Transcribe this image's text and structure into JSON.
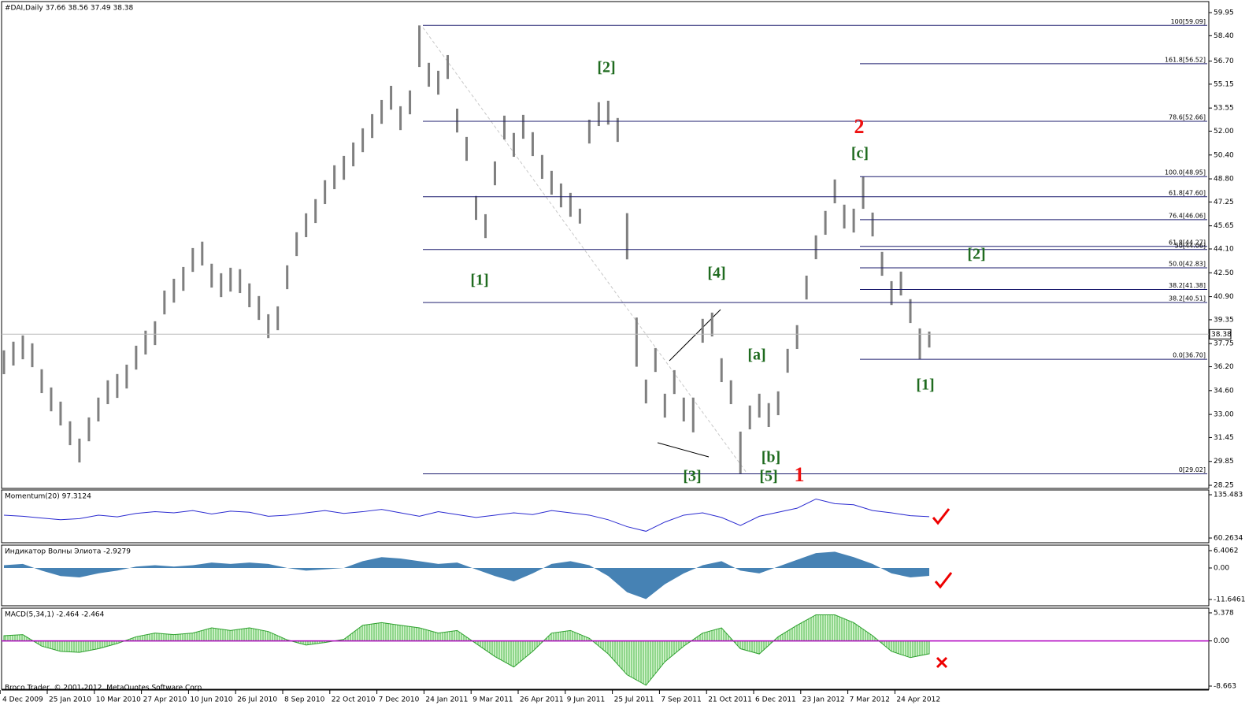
{
  "chart_data": [
    {
      "type": "hlbar",
      "title": "#DAI,Daily  37.66 38.56 37.49 38.38",
      "color": "#7f7f7f",
      "high": [
        37.3,
        37.88,
        38.3,
        37.77,
        36.03,
        34.81,
        33.86,
        32.54,
        31.38,
        32.8,
        34.13,
        35.29,
        35.71,
        36.34,
        37.61,
        38.62,
        39.25,
        41.31,
        42.1,
        42.89,
        44.16,
        44.59,
        43.11,
        42.47,
        42.84,
        42.74,
        41.79,
        40.94,
        39.72,
        40.25,
        43.0,
        45.22,
        46.49,
        47.44,
        48.71,
        49.71,
        50.34,
        51.24,
        52.19,
        53.14,
        54.09,
        55.04,
        53.67,
        54.73,
        59.09,
        56.58,
        56.05,
        57.1,
        53.51,
        51.61,
        47.65,
        46.43,
        49.97,
        53.04,
        51.88,
        53.09,
        51.93,
        50.4,
        49.34,
        48.49,
        47.86,
        46.8,
        52.77,
        53.94,
        54.04,
        52.88,
        46.5,
        39.5,
        35.34,
        37.45,
        34.39,
        35.97,
        34.13,
        34.13,
        39.41,
        39.83,
        36.77,
        35.29,
        31.85,
        33.6,
        34.39,
        33.76,
        34.55,
        37.4,
        38.99,
        42.31,
        45.01,
        46.65,
        48.76,
        47.07,
        46.8,
        48.95,
        46.54,
        43.9,
        41.94,
        42.58,
        40.73,
        38.77,
        38.56
      ],
      "low": [
        35.7,
        36.28,
        36.7,
        36.17,
        34.43,
        33.21,
        32.26,
        30.94,
        29.78,
        31.2,
        32.53,
        33.69,
        34.11,
        34.74,
        36.01,
        37.02,
        37.65,
        39.71,
        40.5,
        41.29,
        42.56,
        42.99,
        41.51,
        40.87,
        41.24,
        41.14,
        40.19,
        39.34,
        38.12,
        38.65,
        41.4,
        43.62,
        44.89,
        45.84,
        47.11,
        48.11,
        48.74,
        49.64,
        50.59,
        51.54,
        52.49,
        53.44,
        52.07,
        53.13,
        56.3,
        54.98,
        54.45,
        55.5,
        51.91,
        50.01,
        46.05,
        44.83,
        48.37,
        51.44,
        50.28,
        51.49,
        50.33,
        48.8,
        47.74,
        46.89,
        46.26,
        45.8,
        51.17,
        52.34,
        52.44,
        51.28,
        43.4,
        36.2,
        33.74,
        35.85,
        32.79,
        34.37,
        32.53,
        31.8,
        37.81,
        38.23,
        35.17,
        33.69,
        29.02,
        32.0,
        32.79,
        32.16,
        32.95,
        35.8,
        37.39,
        40.71,
        43.41,
        45.05,
        47.16,
        45.47,
        45.2,
        46.79,
        44.94,
        42.3,
        40.34,
        40.98,
        39.13,
        36.7,
        37.49
      ],
      "ylim": [
        28.04,
        60.69
      ],
      "yticks": [
        59.95,
        {
          "value": 58.4,
          "label": "58.40"
        },
        {
          "value": 56.7,
          "label": "56.70"
        },
        55.15,
        53.55,
        {
          "value": 52,
          "label": "52.00"
        },
        {
          "value": 50.4,
          "label": "50.40"
        },
        {
          "value": 48.8,
          "label": "48.80"
        },
        47.25,
        45.65,
        {
          "value": 44.1,
          "label": "44.10"
        },
        {
          "value": 42.5,
          "label": "42.50"
        },
        {
          "value": 40.9,
          "label": "40.90"
        },
        39.35,
        37.75,
        {
          "value": 36.2,
          "label": "36.20"
        },
        {
          "value": 34.6,
          "label": "34.60"
        },
        {
          "value": 33,
          "label": "33.00"
        },
        31.45,
        29.85,
        28.25
      ],
      "last_price": 38.38,
      "fib_color": "#1c1c6e",
      "fib_levels": [
        {
          "value": 59.09,
          "label": "100[59.09]"
        },
        {
          "value": 56.52,
          "label": "161.8[56.52]"
        },
        {
          "value": 52.66,
          "label": "78.6[52.66]"
        },
        {
          "value": 48.95,
          "label": "100.0[48.95]"
        },
        {
          "value": 47.6,
          "label": "61.8[47.60]"
        },
        {
          "value": 46.06,
          "label": "76.4[46.06]"
        },
        {
          "value": 44.27,
          "label": "61.8[44.27]"
        },
        {
          "value": 44.06,
          "label": "50[44.06]"
        },
        {
          "value": 42.83,
          "label": "50.0[42.83]"
        },
        {
          "value": 41.38,
          "label": "38.2[41.38]"
        },
        {
          "value": 40.51,
          "label": "38.2[40.51]"
        },
        {
          "value": 36.7,
          "label": "0.0[36.70]"
        },
        {
          "value": 29.02,
          "label": "0[29.02]"
        }
      ],
      "wave_labels": [
        {
          "text": "[2]",
          "color": "#1f6b1f"
        },
        {
          "text": "[1]",
          "color": "#1f6b1f"
        },
        {
          "text": "[4]",
          "color": "#1f6b1f"
        },
        {
          "text": "[a]",
          "color": "#1f6b1f"
        },
        {
          "text": "[b]",
          "color": "#1f6b1f"
        },
        {
          "text": "[3]",
          "color": "#1f6b1f"
        },
        {
          "text": "[5]",
          "color": "#1f6b1f"
        },
        {
          "text": "1",
          "color": "#ee1111"
        },
        {
          "text": "2",
          "color": "#ee1111"
        },
        {
          "text": "[c]",
          "color": "#1f6b1f"
        },
        {
          "text": "[2]",
          "color": "#1f6b1f"
        },
        {
          "text": "[1]",
          "color": "#1f6b1f"
        }
      ],
      "dates": [
        "4 Dec 2009",
        "25 Jan 2010",
        "10 Mar 2010",
        "27 Apr 2010",
        "10 Jun 2010",
        "26 Jul 2010",
        "8 Sep 2010",
        "22 Oct 2010",
        "7 Dec 2010",
        "24 Jan 2011",
        "9 Mar 2011",
        "26 Apr 2011",
        "9 Jun 2011",
        "25 Jul 2011",
        "7 Sep 2011",
        "21 Oct 2011",
        "6 Dec 2011",
        "23 Jan 2012",
        "7 Mar 2012",
        "24 Apr 2012"
      ],
      "copyright": "Broco Trader, © 2001-2012, MetaQuotes Software Corp."
    },
    {
      "type": "line",
      "title": "Momentum(20) 97.3124",
      "color": "#2a2ad0",
      "values": [
        100,
        98,
        95,
        92,
        94,
        100,
        97,
        103,
        106,
        104,
        108,
        102,
        107,
        105,
        98,
        100,
        104,
        108,
        103,
        106,
        110,
        104,
        98,
        106,
        101,
        96,
        100,
        104,
        101,
        108,
        104,
        100,
        92,
        80,
        72,
        88,
        100,
        104,
        96,
        82,
        98,
        105,
        112,
        128,
        120,
        118,
        108,
        104,
        99,
        97.3124
      ],
      "ylim": [
        52.06,
        143.69
      ],
      "yticks": [
        60.2634,
        135.483
      ]
    },
    {
      "type": "area",
      "title": "Индикатор Волны Элиота -2.9279",
      "color": "#4682b4",
      "values": [
        1,
        1.5,
        -1,
        -3,
        -3.5,
        -2,
        -1,
        0.5,
        1,
        0.5,
        1,
        2,
        1.5,
        2,
        1.5,
        0,
        -1,
        -0.5,
        0,
        2.5,
        4,
        3.5,
        2.5,
        1.5,
        2,
        -0.5,
        -3,
        -5,
        -2,
        1.5,
        2.5,
        1,
        -3,
        -9,
        -11.5,
        -6,
        -2,
        1,
        2.5,
        -1,
        -2,
        0.5,
        3,
        5.5,
        6,
        4,
        1.5,
        -2,
        -3.5,
        -2.9279
      ],
      "ylim": [
        -13.98,
        8.44
      ],
      "yticks": [
        -11.6461,
        {
          "value": 0,
          "label": "0.00"
        },
        6.4062
      ]
    },
    {
      "type": "histogram",
      "title": "MACD(5,34,1) -2.464 -2.464",
      "color": "#2ea02e",
      "level_color": "#b000c0",
      "values": [
        1,
        1.2,
        -1,
        -2,
        -2.2,
        -1.5,
        -0.5,
        0.8,
        1.5,
        1.2,
        1.5,
        2.5,
        2,
        2.5,
        1.8,
        0.2,
        -0.8,
        -0.3,
        0.3,
        3,
        3.5,
        3,
        2.5,
        1.5,
        2,
        -0.5,
        -3,
        -5,
        -2,
        1.5,
        2,
        0.5,
        -2.5,
        -6.5,
        -8.5,
        -4,
        -1,
        1.5,
        2.5,
        -1.5,
        -2.5,
        0.8,
        3,
        5,
        5,
        3.5,
        1,
        -2,
        -3.2,
        -2.464
      ],
      "ylim": [
        -9.27,
        6.28
      ],
      "yticks": [
        -8.663,
        {
          "value": 0,
          "label": "0.00"
        },
        5.378
      ]
    }
  ]
}
